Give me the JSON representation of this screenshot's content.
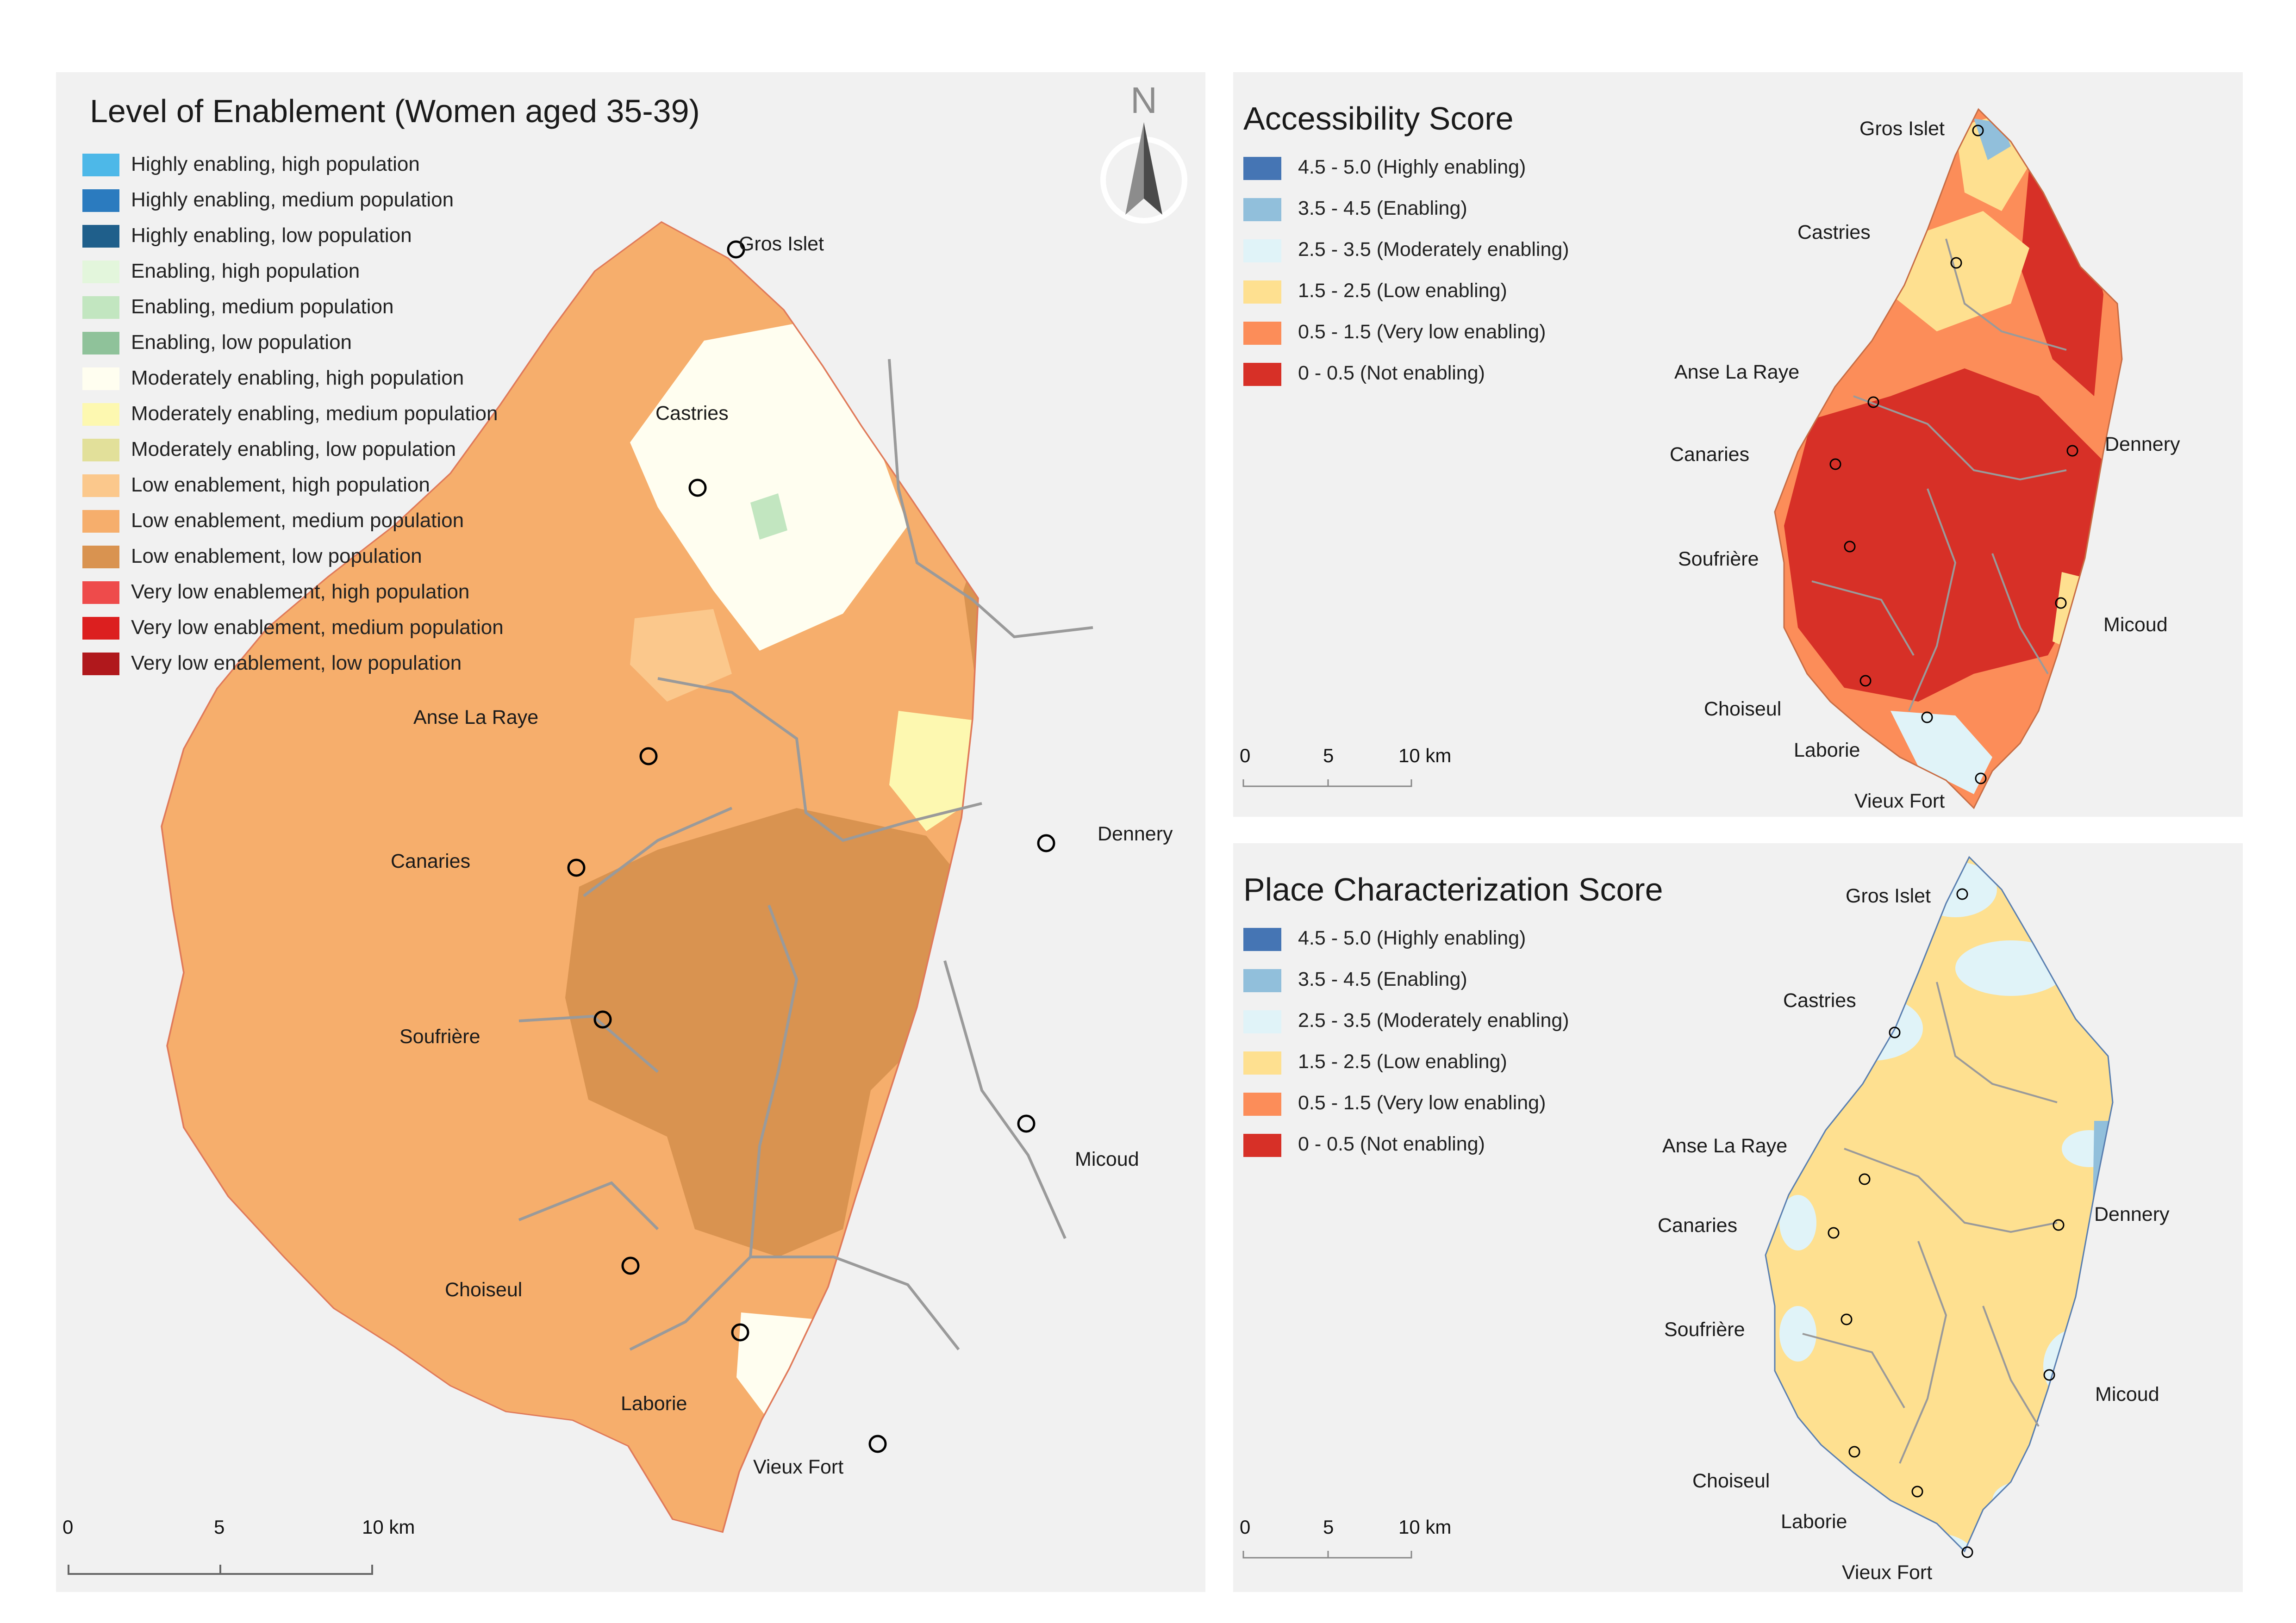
{
  "main_panel": {
    "title": "Level of Enablement (Women aged 35-39)",
    "north_arrow_label": "N",
    "legend": [
      {
        "label": "Highly enabling, high population",
        "color": "#4db8e8"
      },
      {
        "label": "Highly enabling, medium population",
        "color": "#2b7bbf"
      },
      {
        "label": "Highly enabling, low population",
        "color": "#1f5f8b"
      },
      {
        "label": "Enabling, high population",
        "color": "#e3f6dc"
      },
      {
        "label": "Enabling, medium population",
        "color": "#c2e6c0"
      },
      {
        "label": "Enabling, low population",
        "color": "#8fc29a"
      },
      {
        "label": "Moderately enabling, high population",
        "color": "#fffef0"
      },
      {
        "label": "Moderately enabling, medium population",
        "color": "#fdf8b0"
      },
      {
        "label": "Moderately enabling, low population",
        "color": "#e2e09a"
      },
      {
        "label": "Low enablement, high population",
        "color": "#fbc88c"
      },
      {
        "label": "Low enablement, medium population",
        "color": "#f6ae6c"
      },
      {
        "label": "Low enablement, low population",
        "color": "#d99350"
      },
      {
        "label": "Very low enablement, high population",
        "color": "#ee4b4b"
      },
      {
        "label": "Very low enablement, medium population",
        "color": "#dc1f1f"
      },
      {
        "label": "Very low enablement, low population",
        "color": "#b0181c"
      }
    ],
    "places": [
      "Gros Islet",
      "Castries",
      "Anse La Raye",
      "Canaries",
      "Dennery",
      "Soufrière",
      "Micoud",
      "Choiseul",
      "Laborie",
      "Vieux Fort"
    ],
    "scale_labels": [
      "0",
      "5",
      "10 km"
    ]
  },
  "accessibility_panel": {
    "title": "Accessibility Score",
    "legend": [
      {
        "label": "4.5 - 5.0 (Highly enabling)",
        "color": "#4575b4"
      },
      {
        "label": "3.5 - 4.5 (Enabling)",
        "color": "#91bfdb"
      },
      {
        "label": "2.5 - 3.5 (Moderately enabling)",
        "color": "#e0f3f8"
      },
      {
        "label": "1.5 - 2.5 (Low enabling)",
        "color": "#fee090"
      },
      {
        "label": "0.5 - 1.5 (Very low enabling)",
        "color": "#fc8d59"
      },
      {
        "label": "0 - 0.5 (Not enabling)",
        "color": "#d73027"
      }
    ],
    "places": [
      "Gros Islet",
      "Castries",
      "Anse La Raye",
      "Canaries",
      "Dennery",
      "Soufrière",
      "Micoud",
      "Choiseul",
      "Laborie",
      "Vieux Fort"
    ],
    "scale_labels": [
      "0",
      "5",
      "10 km"
    ]
  },
  "place_panel": {
    "title": "Place Characterization Score",
    "legend": [
      {
        "label": "4.5 - 5.0 (Highly enabling)",
        "color": "#4575b4"
      },
      {
        "label": "3.5 - 4.5 (Enabling)",
        "color": "#91bfdb"
      },
      {
        "label": "2.5 - 3.5 (Moderately enabling)",
        "color": "#e0f3f8"
      },
      {
        "label": "1.5 - 2.5 (Low enabling)",
        "color": "#fee090"
      },
      {
        "label": "0.5 - 1.5 (Very low enabling)",
        "color": "#fc8d59"
      },
      {
        "label": "0 - 0.5 (Not enabling)",
        "color": "#d73027"
      }
    ],
    "places": [
      "Gros Islet",
      "Castries",
      "Anse La Raye",
      "Canaries",
      "Dennery",
      "Soufrière",
      "Micoud",
      "Choiseul",
      "Laborie",
      "Vieux Fort"
    ],
    "scale_labels": [
      "0",
      "5",
      "10 km"
    ]
  }
}
